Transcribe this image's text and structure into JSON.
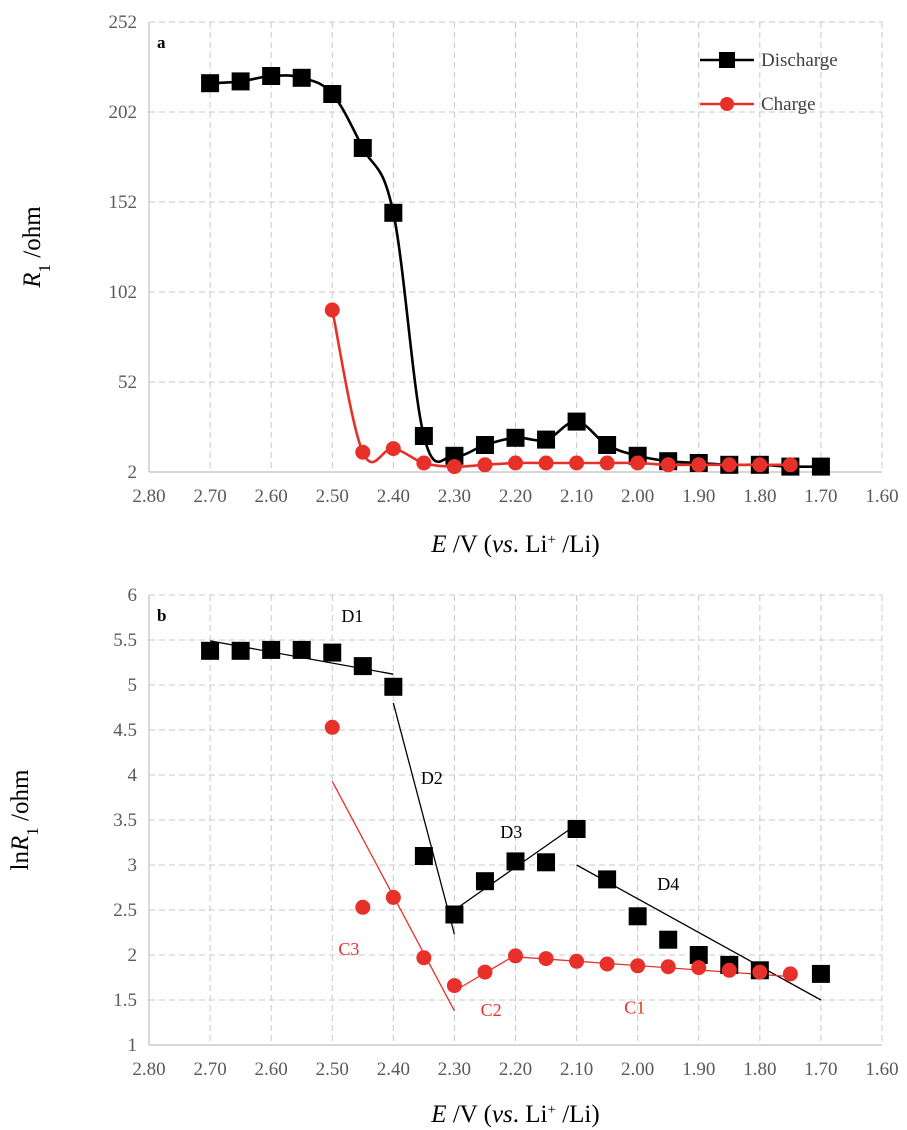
{
  "chart_data": [
    {
      "type": "line",
      "panel_label": "a",
      "xlabel_parts": [
        "E",
        " /V (",
        "vs",
        ". Li",
        "+",
        " /Li)"
      ],
      "ylabel_parts": [
        "R",
        "1",
        " /ohm"
      ],
      "xlim": [
        2.8,
        1.6
      ],
      "ylim": [
        2,
        252
      ],
      "x_reversed": true,
      "grid": true,
      "xticks": [
        "2.80",
        "2.70",
        "2.60",
        "2.50",
        "2.40",
        "2.30",
        "2.20",
        "2.10",
        "2.00",
        "1.90",
        "1.80",
        "1.70",
        "1.60"
      ],
      "yticks": [
        "2",
        "52",
        "102",
        "152",
        "202",
        "252"
      ],
      "legend_position": "top-right",
      "series": [
        {
          "name": "Discharge",
          "color": "#000000",
          "marker": "square",
          "smooth": true,
          "x": [
            2.7,
            2.65,
            2.6,
            2.55,
            2.5,
            2.45,
            2.4,
            2.35,
            2.3,
            2.25,
            2.2,
            2.15,
            2.1,
            2.05,
            2.0,
            1.95,
            1.9,
            1.85,
            1.8,
            1.75,
            1.7
          ],
          "y": [
            218,
            219,
            222,
            221,
            212,
            182,
            146,
            22,
            11,
            17,
            21,
            20,
            30,
            17,
            11,
            8,
            7,
            6,
            6,
            5,
            5
          ]
        },
        {
          "name": "Charge",
          "color": "#e8302a",
          "marker": "circle",
          "smooth": true,
          "x": [
            2.5,
            2.45,
            2.4,
            2.35,
            2.3,
            2.25,
            2.2,
            2.15,
            2.1,
            2.05,
            2.0,
            1.95,
            1.9,
            1.85,
            1.8,
            1.75
          ],
          "y": [
            92,
            13,
            15,
            7,
            5,
            6,
            7,
            7,
            7,
            7,
            7,
            6,
            6,
            6,
            6,
            6
          ]
        }
      ]
    },
    {
      "type": "scatter",
      "panel_label": "b",
      "xlabel_parts": [
        "E",
        " /V (",
        "vs",
        ". Li",
        "+",
        " /Li)"
      ],
      "ylabel_parts": [
        "ln",
        "R",
        "1",
        " /ohm"
      ],
      "xlim": [
        2.8,
        1.6
      ],
      "ylim": [
        1,
        6
      ],
      "x_reversed": true,
      "grid": true,
      "xticks": [
        "2.80",
        "2.70",
        "2.60",
        "2.50",
        "2.40",
        "2.30",
        "2.20",
        "2.10",
        "2.00",
        "1.90",
        "1.80",
        "1.70",
        "1.60"
      ],
      "yticks": [
        "1",
        "1.5",
        "2",
        "2.5",
        "3",
        "3.5",
        "4",
        "4.5",
        "5",
        "5.5",
        "6"
      ],
      "series": [
        {
          "name": "Discharge",
          "color": "#000000",
          "marker": "square",
          "x": [
            2.7,
            2.65,
            2.6,
            2.55,
            2.5,
            2.45,
            2.4,
            2.35,
            2.3,
            2.25,
            2.2,
            2.15,
            2.1,
            2.05,
            2.0,
            1.95,
            1.9,
            1.85,
            1.8,
            1.7
          ],
          "y": [
            5.38,
            5.38,
            5.39,
            5.39,
            5.36,
            5.21,
            4.98,
            3.1,
            2.45,
            2.82,
            3.04,
            3.03,
            3.4,
            2.84,
            2.43,
            2.17,
            2.0,
            1.89,
            1.83,
            1.79
          ]
        },
        {
          "name": "Charge",
          "color": "#e8302a",
          "marker": "circle",
          "x": [
            2.5,
            2.45,
            2.4,
            2.35,
            2.3,
            2.25,
            2.2,
            2.15,
            2.1,
            2.05,
            2.0,
            1.95,
            1.9,
            1.85,
            1.8,
            1.75
          ],
          "y": [
            4.53,
            2.53,
            2.64,
            1.97,
            1.66,
            1.81,
            1.99,
            1.96,
            1.93,
            1.9,
            1.88,
            1.87,
            1.86,
            1.83,
            1.81,
            1.79
          ]
        }
      ],
      "fit_lines": [
        {
          "label": "D1",
          "color": "#000000",
          "from": [
            2.7,
            5.49
          ],
          "to": [
            2.4,
            5.12
          ]
        },
        {
          "label": "D2",
          "color": "#000000",
          "from": [
            2.4,
            4.8
          ],
          "to": [
            2.3,
            2.23
          ]
        },
        {
          "label": "D3",
          "color": "#000000",
          "from": [
            2.3,
            2.5
          ],
          "to": [
            2.1,
            3.45
          ]
        },
        {
          "label": "D4",
          "color": "#000000",
          "from": [
            2.1,
            3.0
          ],
          "to": [
            1.7,
            1.5
          ]
        },
        {
          "label": "C3",
          "color": "#e8302a",
          "from": [
            2.5,
            3.93
          ],
          "to": [
            2.3,
            1.38
          ]
        },
        {
          "label": "C2",
          "color": "#e8302a",
          "from": [
            2.3,
            1.6
          ],
          "to": [
            2.2,
            2.0
          ]
        },
        {
          "label": "C1",
          "color": "#e8302a",
          "from": [
            2.2,
            1.98
          ],
          "to": [
            1.75,
            1.76
          ]
        }
      ],
      "annotations": [
        {
          "text": "D1",
          "x": 2.485,
          "y": 5.7,
          "color": "#000000"
        },
        {
          "text": "D2",
          "x": 2.355,
          "y": 3.9,
          "color": "#000000"
        },
        {
          "text": "D3",
          "x": 2.225,
          "y": 3.3,
          "color": "#000000"
        },
        {
          "text": "D4",
          "x": 1.968,
          "y": 2.72,
          "color": "#000000"
        },
        {
          "text": "C3",
          "x": 2.49,
          "y": 2.0,
          "color": "#e8302a"
        },
        {
          "text": "C2",
          "x": 2.257,
          "y": 1.32,
          "color": "#e8302a"
        },
        {
          "text": "C1",
          "x": 2.022,
          "y": 1.35,
          "color": "#e8302a"
        }
      ]
    }
  ]
}
